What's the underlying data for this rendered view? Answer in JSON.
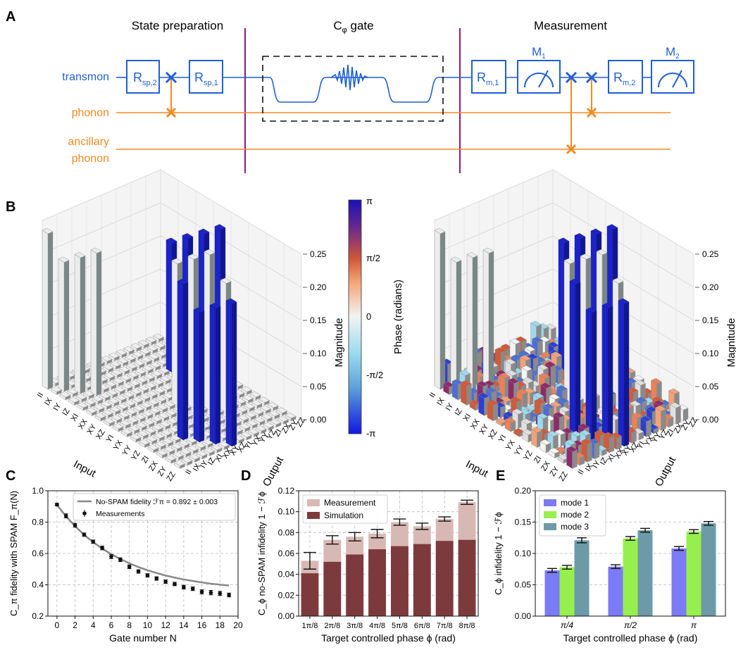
{
  "panels": {
    "A": "A",
    "B": "B",
    "C": "C",
    "D": "D",
    "E": "E"
  },
  "circuit": {
    "sections": [
      "State preparation",
      "C",
      "φ",
      " gate",
      "Measurement"
    ],
    "lines": {
      "transmon": "transmon",
      "phonon": "phonon",
      "ancillary_1": "ancillary",
      "ancillary_2": "phonon"
    },
    "gates": {
      "rsp2": {
        "main": "R",
        "sub": "sp,2"
      },
      "rsp1": {
        "main": "R",
        "sub": "sp,1"
      },
      "rm1": {
        "main": "R",
        "sub": "m,1"
      },
      "rm2": {
        "main": "R",
        "sub": "m,2"
      },
      "m1": {
        "main": "M",
        "sub": "1"
      },
      "m2": {
        "main": "M",
        "sub": "2"
      }
    },
    "colors": {
      "transmon": "#1f5fd6",
      "phonon": "#f5891f",
      "divider": "#8b1a7a"
    }
  },
  "panel_b": {
    "magnitude_ticks": [
      "0.25",
      "0.20",
      "0.15",
      "0.10",
      "0.05",
      "0.00"
    ],
    "magnitude_label": "Magnitude",
    "input_label": "Input",
    "output_label": "Output",
    "pauli_labels": [
      "II",
      "IX",
      "IY",
      "IZ",
      "XI",
      "XX",
      "XY",
      "XZ",
      "YI",
      "YX",
      "YY",
      "YZ",
      "ZI",
      "ZX",
      "ZY",
      "ZZ"
    ],
    "colorbar": {
      "ticks": [
        "π",
        "π/2",
        "0",
        "-π/2",
        "-π"
      ],
      "label": "Phase (radians)"
    }
  },
  "chart_data": [
    {
      "panel": "C",
      "type": "line",
      "title": "",
      "xlabel": "Gate number N",
      "ylabel": "C_π fidelity with SPAM F_π(N)",
      "xlim": [
        -1,
        20
      ],
      "ylim": [
        0.2,
        1.0
      ],
      "xticks": [
        "0",
        "2",
        "4",
        "6",
        "8",
        "10",
        "12",
        "14",
        "16",
        "18",
        "20"
      ],
      "yticks": [
        "0.2",
        "0.4",
        "0.6",
        "0.8",
        "1.0"
      ],
      "legend": {
        "fit": "No-SPAM fidelity ℱπ = 0.892 ± 0.003",
        "points": "Measurements"
      },
      "x": [
        0,
        1,
        2,
        3,
        4,
        5,
        6,
        7,
        8,
        9,
        10,
        11,
        12,
        13,
        14,
        15,
        16,
        17,
        18,
        19
      ],
      "measurements": [
        0.912,
        0.84,
        0.78,
        0.72,
        0.675,
        0.635,
        0.58,
        0.56,
        0.515,
        0.485,
        0.46,
        0.44,
        0.42,
        0.405,
        0.385,
        0.375,
        0.355,
        0.35,
        0.345,
        0.335
      ],
      "errors": [
        0.008,
        0.013,
        0.012,
        0.011,
        0.011,
        0.012,
        0.013,
        0.012,
        0.012,
        0.011,
        0.011,
        0.011,
        0.011,
        0.011,
        0.012,
        0.012,
        0.013,
        0.014,
        0.013,
        0.012
      ],
      "fit": [
        0.91,
        0.837,
        0.774,
        0.719,
        0.672,
        0.631,
        0.595,
        0.564,
        0.537,
        0.513,
        0.493,
        0.475,
        0.459,
        0.446,
        0.434,
        0.424,
        0.415,
        0.407,
        0.401,
        0.395
      ]
    },
    {
      "panel": "D",
      "type": "bar",
      "title": "",
      "xlabel": "Target controlled phase ϕ (rad)",
      "ylabel": "C_ϕ no-SPAM infidelity 1 − ℱϕ",
      "categories": [
        "1π/8",
        "2π/8",
        "3π/8",
        "4π/8",
        "5π/8",
        "6π/8",
        "7π/8",
        "8π/8"
      ],
      "ylim": [
        0,
        0.12
      ],
      "yticks": [
        "0.00",
        "0.02",
        "0.04",
        "0.06",
        "0.08",
        "0.10",
        "0.12"
      ],
      "series": [
        {
          "name": "Measurement",
          "color": "#d8b8b5",
          "values": [
            0.053,
            0.073,
            0.076,
            0.079,
            0.09,
            0.086,
            0.093,
            0.109
          ],
          "errors": [
            0.008,
            0.004,
            0.004,
            0.004,
            0.003,
            0.003,
            0.002,
            0.002
          ]
        },
        {
          "name": "Simulation",
          "color": "#7d3a3c",
          "values": [
            0.041,
            0.052,
            0.059,
            0.064,
            0.067,
            0.069,
            0.072,
            0.073
          ]
        }
      ]
    },
    {
      "panel": "E",
      "type": "bar",
      "title": "",
      "xlabel": "Target controlled phase ϕ (rad)",
      "ylabel": "C_ϕ infidelity 1 − ℱϕ",
      "categories": [
        "π/4",
        "π/2",
        "π"
      ],
      "ylim": [
        0,
        0.2
      ],
      "yticks": [
        "0.00",
        "0.05",
        "0.10",
        "0.15",
        "0.20"
      ],
      "series": [
        {
          "name": "mode 1",
          "color": "#7b7bf5",
          "values": [
            0.073,
            0.079,
            0.108
          ],
          "errors": [
            0.003,
            0.003,
            0.003
          ]
        },
        {
          "name": "mode 2",
          "color": "#96ef4d",
          "values": [
            0.078,
            0.124,
            0.135
          ],
          "errors": [
            0.003,
            0.003,
            0.003
          ]
        },
        {
          "name": "mode 3",
          "color": "#6d9aa7",
          "values": [
            0.121,
            0.137,
            0.148
          ],
          "errors": [
            0.004,
            0.003,
            0.003
          ]
        }
      ]
    }
  ]
}
